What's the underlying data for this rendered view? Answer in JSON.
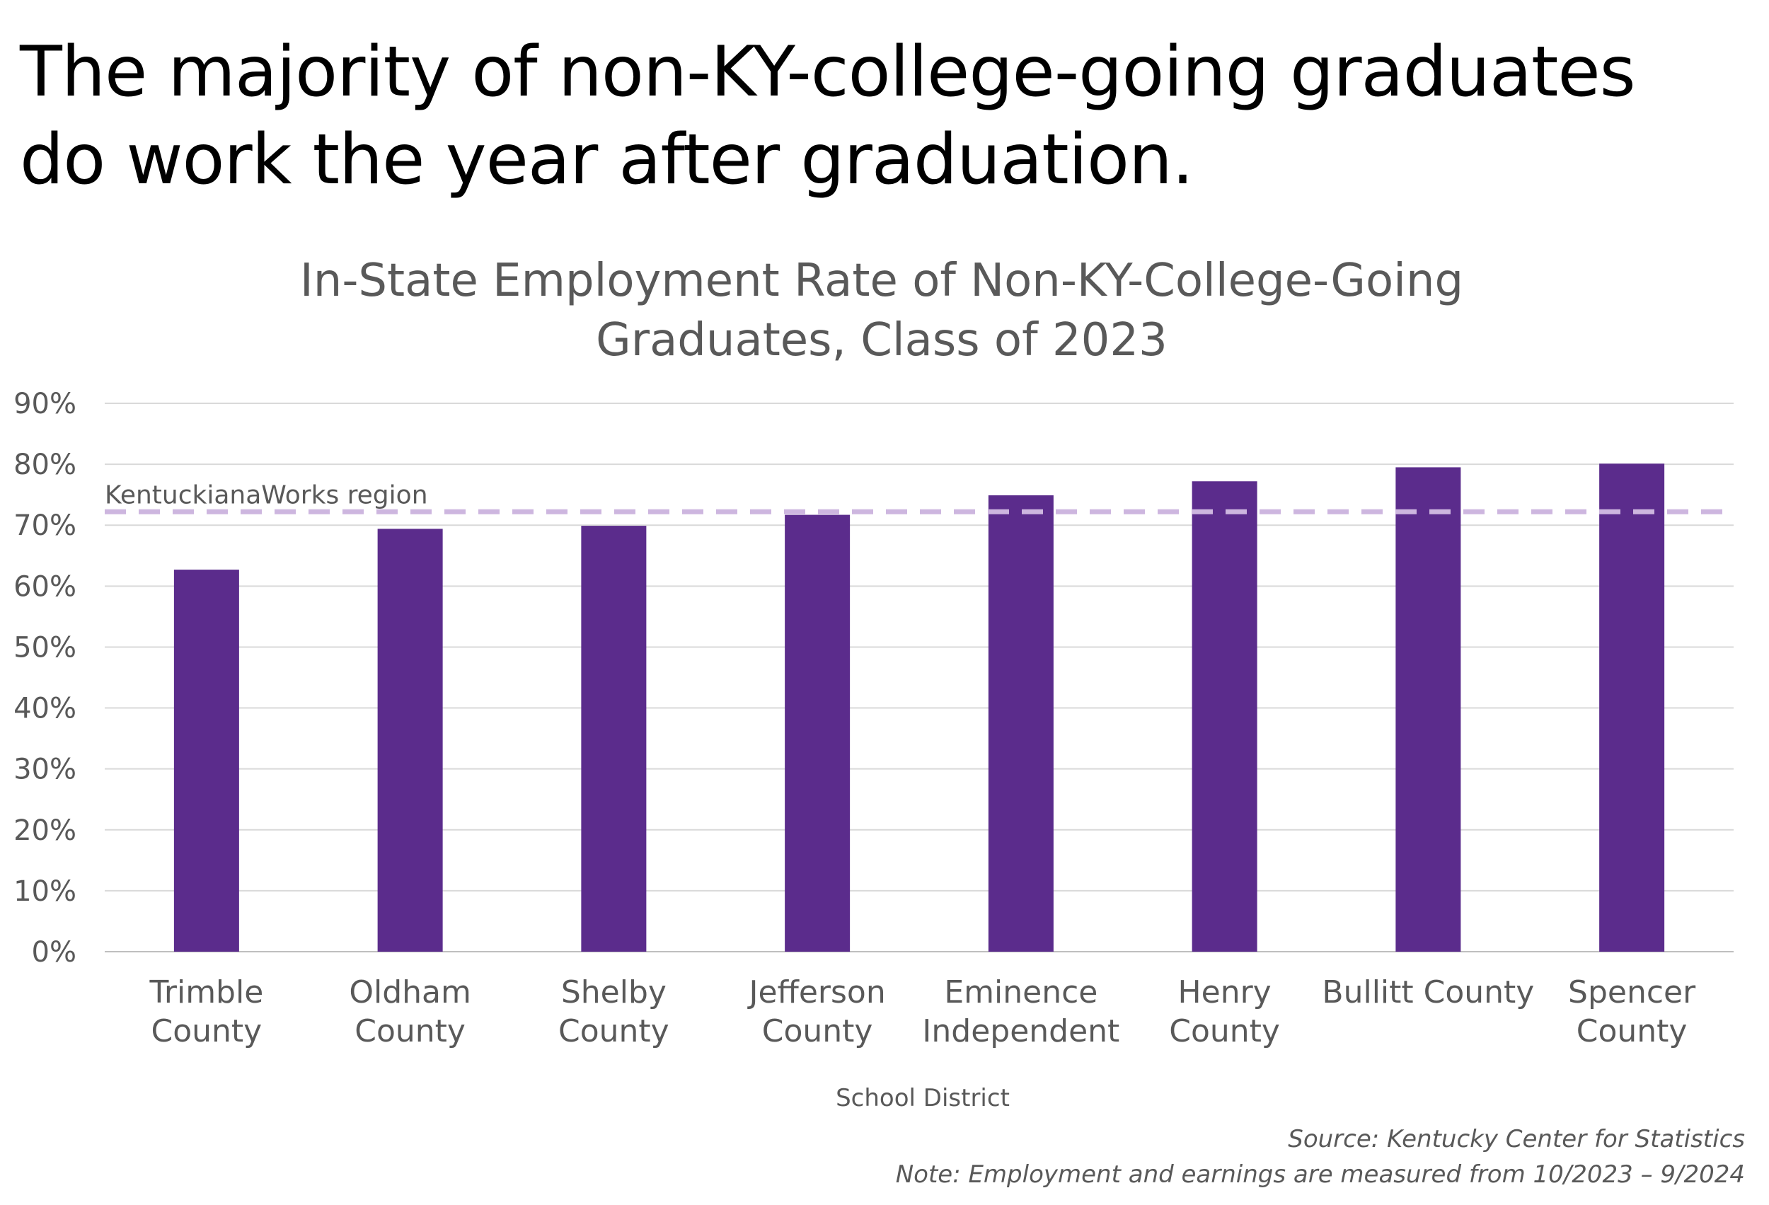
{
  "headline": {
    "line1": "The majority of non-KY-college-going graduates",
    "line2": "do work the year after graduation."
  },
  "chart_data": {
    "type": "bar",
    "title": [
      "In-State Employment Rate of Non-KY-College-Going",
      "Graduates, Class of 2023"
    ],
    "xlabel": "School District",
    "ylabel": "",
    "ylim": [
      0,
      90
    ],
    "yticks": [
      "0%",
      "10%",
      "20%",
      "30%",
      "40%",
      "50%",
      "60%",
      "70%",
      "80%",
      "90%"
    ],
    "grid": true,
    "categories": [
      [
        "Trimble",
        "County"
      ],
      [
        "Oldham",
        "County"
      ],
      [
        "Shelby",
        "County"
      ],
      [
        "Jefferson",
        "County"
      ],
      [
        "Eminence",
        "Independent"
      ],
      [
        "Henry",
        "County"
      ],
      [
        "Bullitt County"
      ],
      [
        "Spencer",
        "County"
      ]
    ],
    "values": [
      62.7,
      69.4,
      69.9,
      71.7,
      74.9,
      77.2,
      79.5,
      80.1
    ],
    "bar_color": "#5b2c8c",
    "reference_line": {
      "label": "KentuckianaWorks region",
      "value": 72.2,
      "color": "#cdb6df"
    }
  },
  "footnotes": {
    "source": "Source: Kentucky Center for Statistics",
    "note": "Note: Employment and earnings are measured from 10/2023 – 9/2024"
  }
}
